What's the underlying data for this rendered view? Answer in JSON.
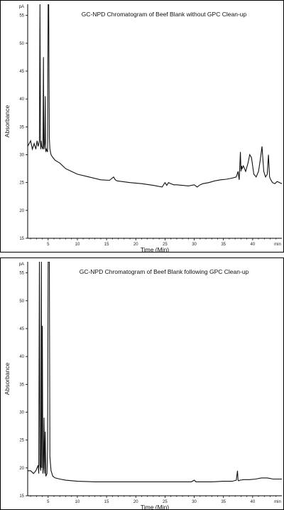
{
  "chart_data": [
    {
      "type": "line",
      "title": "GC-NPD Chromatogram of Beef Blank without GPC Clean-up",
      "xlabel": "Time (Min)",
      "ylabel": "Absorbance",
      "y_unit_label": "pA",
      "x_unit_label": "min",
      "xlim": [
        1.5,
        45
      ],
      "ylim": [
        15,
        57
      ],
      "x_ticks": [
        5,
        10,
        15,
        20,
        25,
        30,
        35,
        40
      ],
      "y_ticks": [
        15,
        20,
        25,
        30,
        35,
        40,
        45,
        50,
        55
      ],
      "grid": false,
      "series": [
        {
          "x": [
            1.5,
            2.0,
            2.3,
            2.6,
            2.9,
            3.1,
            3.3,
            3.5,
            3.6,
            3.7,
            3.75,
            3.8,
            3.9,
            4.1,
            4.2,
            4.25,
            4.3,
            4.4,
            4.5,
            4.55,
            4.6,
            4.7,
            4.9,
            5.0,
            5.1,
            5.2,
            5.3,
            5.5,
            5.8,
            6.2,
            7.0,
            8.0,
            9.0,
            10.0,
            12.0,
            14.0,
            15.5,
            16.2,
            16.5,
            16.8,
            17.5,
            19.0,
            21.0,
            23.0,
            24.5,
            25.0,
            25.3,
            25.6,
            26.0,
            26.5,
            27.0,
            28.0,
            29.0,
            30.0,
            30.5,
            31.0,
            31.5,
            32.5,
            33.5,
            34.5,
            35.5,
            36.5,
            37.2,
            37.5,
            37.7,
            37.9,
            38.0,
            38.1,
            38.2,
            38.4,
            38.8,
            39.2,
            39.5,
            39.8,
            40.2,
            40.6,
            41.0,
            41.3,
            41.6,
            41.9,
            42.2,
            42.5,
            42.7,
            42.9,
            43.1,
            43.4,
            43.8,
            44.2,
            44.6,
            45.0
          ],
          "y": [
            31.5,
            32.5,
            31.0,
            32.0,
            31.0,
            32.5,
            31.5,
            32.5,
            57.0,
            32.0,
            31.0,
            32.5,
            31.5,
            31.0,
            47.5,
            33.0,
            31.0,
            32.0,
            40.5,
            31.5,
            30.5,
            31.0,
            30.5,
            57.0,
            57.0,
            33.0,
            31.0,
            30.0,
            29.5,
            29.0,
            28.5,
            27.5,
            27.0,
            26.5,
            26.0,
            25.5,
            25.4,
            26.0,
            25.5,
            25.3,
            25.2,
            25.0,
            24.8,
            24.5,
            24.2,
            25.0,
            24.5,
            25.0,
            24.8,
            24.6,
            24.6,
            24.5,
            24.4,
            24.6,
            24.2,
            24.6,
            24.8,
            25.0,
            25.3,
            25.5,
            25.6,
            25.8,
            26.0,
            27.0,
            25.5,
            30.5,
            27.0,
            28.0,
            27.5,
            28.0,
            27.0,
            28.5,
            30.0,
            29.5,
            26.5,
            26.0,
            27.0,
            29.0,
            31.5,
            27.0,
            26.0,
            26.5,
            30.0,
            26.0,
            25.5,
            25.0,
            24.8,
            25.2,
            25.0,
            24.8
          ]
        }
      ]
    },
    {
      "type": "line",
      "title": "GC-NPD Chromatogram of Beef Blank following GPC Clean-up",
      "xlabel": "Time (Min)",
      "ylabel": "Absorbance",
      "y_unit_label": "pA",
      "x_unit_label": "min",
      "xlim": [
        1.5,
        45
      ],
      "ylim": [
        15,
        57
      ],
      "x_ticks": [
        5,
        10,
        15,
        20,
        25,
        30,
        35,
        40
      ],
      "y_ticks": [
        15,
        20,
        25,
        30,
        35,
        40,
        45,
        50,
        55
      ],
      "grid": false,
      "series": [
        {
          "x": [
            1.5,
            2.0,
            2.5,
            2.9,
            3.1,
            3.3,
            3.4,
            3.5,
            3.6,
            3.75,
            3.85,
            3.9,
            4.0,
            4.1,
            4.2,
            4.3,
            4.4,
            4.5,
            4.6,
            4.8,
            4.9,
            5.0,
            5.2,
            5.3,
            5.5,
            5.8,
            6.2,
            7.0,
            8.0,
            10.0,
            13.0,
            16.0,
            20.0,
            25.0,
            29.5,
            30.0,
            30.3,
            30.7,
            31.5,
            33.0,
            35.0,
            36.5,
            37.2,
            37.4,
            37.5,
            37.6,
            37.8,
            38.5,
            39.5,
            40.5,
            41.5,
            42.5,
            43.5,
            44.5,
            45.0
          ],
          "y": [
            19.5,
            19.5,
            19.0,
            19.5,
            20.0,
            20.5,
            19.0,
            57.0,
            20.5,
            19.5,
            57.0,
            20.0,
            45.5,
            19.0,
            20.0,
            29.0,
            19.0,
            26.5,
            18.5,
            19.0,
            23.5,
            57.0,
            57.0,
            22.0,
            19.5,
            18.5,
            18.2,
            18.0,
            17.8,
            17.6,
            17.5,
            17.5,
            17.5,
            17.5,
            17.5,
            17.8,
            17.5,
            17.5,
            17.5,
            17.5,
            17.6,
            17.6,
            17.8,
            19.5,
            17.8,
            17.7,
            17.8,
            17.9,
            17.9,
            18.0,
            18.2,
            18.2,
            18.0,
            18.0,
            18.0
          ]
        }
      ]
    }
  ]
}
